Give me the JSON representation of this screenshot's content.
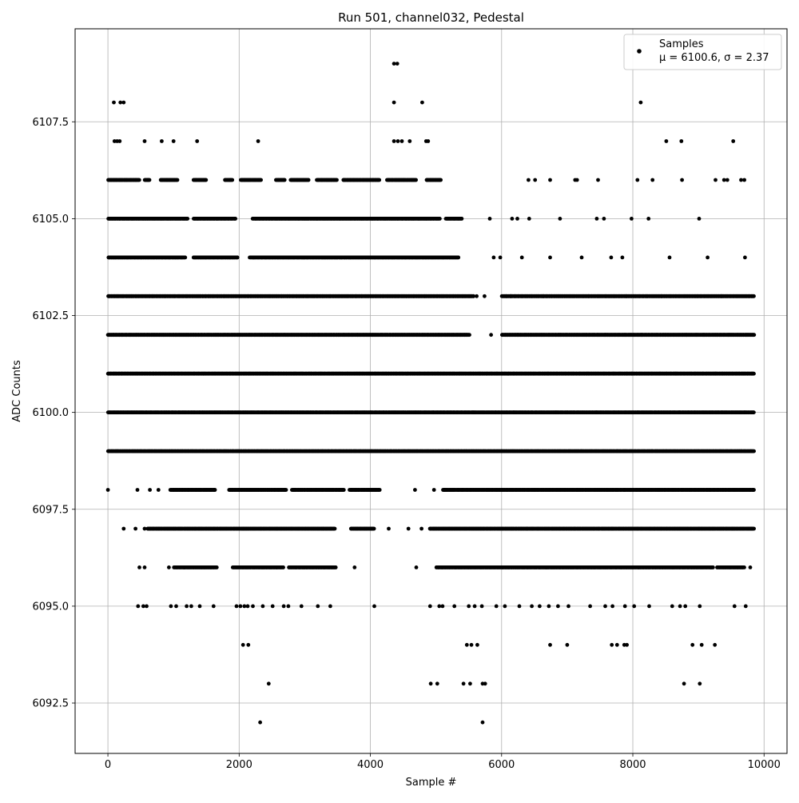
{
  "chart_data": {
    "type": "scatter",
    "title": "Run 501, channel032, Pedestal",
    "xlabel": "Sample #",
    "ylabel": "ADC Counts",
    "xlim": [
      -500,
      10350
    ],
    "ylim": [
      6091.2,
      6109.9
    ],
    "xticks": [
      0,
      2000,
      4000,
      6000,
      8000,
      10000
    ],
    "xtick_labels": [
      "0",
      "2000",
      "4000",
      "6000",
      "8000",
      "10000"
    ],
    "yticks": [
      6092.5,
      6095.0,
      6097.5,
      6100.0,
      6102.5,
      6105.0,
      6107.5
    ],
    "ytick_labels": [
      "6092.5",
      "6095.0",
      "6097.5",
      "6100.0",
      "6102.5",
      "6105.0",
      "6107.5"
    ],
    "grid": true,
    "legend_position": "top-right",
    "marker_color": "#000000",
    "series": [
      {
        "name": "Samples",
        "stats_label": "μ = 6100.6, σ = 2.37",
        "points": [
          [
            4360,
            6109
          ],
          [
            4410,
            6109
          ],
          [
            90,
            6108
          ],
          [
            190,
            6108
          ],
          [
            240,
            6108
          ],
          [
            4360,
            6108
          ],
          [
            4790,
            6108
          ],
          [
            8120,
            6108
          ],
          [
            100,
            6107
          ],
          [
            140,
            6107
          ],
          [
            180,
            6107
          ],
          [
            560,
            6107
          ],
          [
            820,
            6107
          ],
          [
            1000,
            6107
          ],
          [
            1360,
            6107
          ],
          [
            2290,
            6107
          ],
          [
            4360,
            6107
          ],
          [
            4420,
            6107
          ],
          [
            4480,
            6107
          ],
          [
            4600,
            6107
          ],
          [
            4850,
            6107
          ],
          [
            4880,
            6107
          ],
          [
            8510,
            6107
          ],
          [
            8740,
            6107
          ],
          [
            9530,
            6107
          ],
          [
            6410,
            6106
          ],
          [
            6510,
            6106
          ],
          [
            6740,
            6106
          ],
          [
            7120,
            6106
          ],
          [
            7150,
            6106
          ],
          [
            7470,
            6106
          ],
          [
            8070,
            6106
          ],
          [
            8300,
            6106
          ],
          [
            8750,
            6106
          ],
          [
            9260,
            6106
          ],
          [
            9390,
            6106
          ],
          [
            9440,
            6106
          ],
          [
            9650,
            6106
          ],
          [
            9700,
            6106
          ],
          [
            6160,
            6105
          ],
          [
            6240,
            6105
          ],
          [
            6420,
            6105
          ],
          [
            5820,
            6105
          ],
          [
            6890,
            6105
          ],
          [
            7450,
            6105
          ],
          [
            7560,
            6105
          ],
          [
            7980,
            6105
          ],
          [
            8240,
            6105
          ],
          [
            9010,
            6105
          ],
          [
            5880,
            6104
          ],
          [
            5980,
            6104
          ],
          [
            6310,
            6104
          ],
          [
            6740,
            6104
          ],
          [
            7220,
            6104
          ],
          [
            7670,
            6104
          ],
          [
            7840,
            6104
          ],
          [
            8560,
            6104
          ],
          [
            9140,
            6104
          ],
          [
            9710,
            6104
          ],
          [
            5620,
            6103
          ],
          [
            5740,
            6103
          ],
          [
            6140,
            6103
          ],
          [
            6640,
            6103
          ],
          [
            7320,
            6103
          ],
          [
            7900,
            6103
          ],
          [
            8430,
            6103
          ],
          [
            9350,
            6103
          ],
          [
            5510,
            6102
          ],
          [
            5840,
            6102
          ],
          [
            6250,
            6102
          ],
          [
            6890,
            6102
          ],
          [
            7580,
            6102
          ],
          [
            8140,
            6102
          ],
          [
            8820,
            6102
          ],
          [
            9470,
            6102
          ],
          [
            5660,
            6101
          ],
          [
            6110,
            6101
          ],
          [
            6700,
            6101
          ],
          [
            7300,
            6101
          ],
          [
            7980,
            6101
          ],
          [
            8660,
            6101
          ],
          [
            9260,
            6101
          ],
          [
            5570,
            6100
          ],
          [
            6190,
            6100
          ],
          [
            6830,
            6100
          ],
          [
            7450,
            6100
          ],
          [
            8070,
            6100
          ],
          [
            8710,
            6100
          ],
          [
            9370,
            6100
          ],
          [
            5460,
            6099
          ],
          [
            5990,
            6099
          ],
          [
            6550,
            6099
          ],
          [
            7210,
            6099
          ],
          [
            7760,
            6099
          ],
          [
            8290,
            6099
          ],
          [
            8990,
            6099
          ],
          [
            9620,
            6099
          ],
          [
            0,
            6098
          ],
          [
            450,
            6098
          ],
          [
            640,
            6098
          ],
          [
            770,
            6098
          ],
          [
            4680,
            6098
          ],
          [
            4970,
            6098
          ],
          [
            5130,
            6098
          ],
          [
            6500,
            6098
          ],
          [
            7160,
            6098
          ],
          [
            8400,
            6098
          ],
          [
            9180,
            6098
          ],
          [
            240,
            6097
          ],
          [
            420,
            6097
          ],
          [
            560,
            6097
          ],
          [
            4280,
            6097
          ],
          [
            4580,
            6097
          ],
          [
            4780,
            6097
          ],
          [
            5210,
            6097
          ],
          [
            6390,
            6097
          ],
          [
            7110,
            6097
          ],
          [
            7680,
            6097
          ],
          [
            8330,
            6097
          ],
          [
            9010,
            6097
          ],
          [
            480,
            6096
          ],
          [
            560,
            6096
          ],
          [
            930,
            6096
          ],
          [
            1170,
            6096
          ],
          [
            3760,
            6096
          ],
          [
            4700,
            6096
          ],
          [
            5100,
            6096
          ],
          [
            6020,
            6096
          ],
          [
            6680,
            6096
          ],
          [
            7400,
            6096
          ],
          [
            8090,
            6096
          ],
          [
            8620,
            6096
          ],
          [
            9200,
            6096
          ],
          [
            9790,
            6096
          ],
          [
            460,
            6095
          ],
          [
            540,
            6095
          ],
          [
            590,
            6095
          ],
          [
            960,
            6095
          ],
          [
            1040,
            6095
          ],
          [
            1200,
            6095
          ],
          [
            1270,
            6095
          ],
          [
            1400,
            6095
          ],
          [
            1610,
            6095
          ],
          [
            1960,
            6095
          ],
          [
            2020,
            6095
          ],
          [
            2080,
            6095
          ],
          [
            2130,
            6095
          ],
          [
            2210,
            6095
          ],
          [
            2360,
            6095
          ],
          [
            2510,
            6095
          ],
          [
            2680,
            6095
          ],
          [
            2750,
            6095
          ],
          [
            2950,
            6095
          ],
          [
            3200,
            6095
          ],
          [
            3390,
            6095
          ],
          [
            4060,
            6095
          ],
          [
            4910,
            6095
          ],
          [
            5050,
            6095
          ],
          [
            5100,
            6095
          ],
          [
            5280,
            6095
          ],
          [
            5500,
            6095
          ],
          [
            5590,
            6095
          ],
          [
            5700,
            6095
          ],
          [
            5920,
            6095
          ],
          [
            6050,
            6095
          ],
          [
            6270,
            6095
          ],
          [
            6460,
            6095
          ],
          [
            6580,
            6095
          ],
          [
            6720,
            6095
          ],
          [
            6860,
            6095
          ],
          [
            7020,
            6095
          ],
          [
            7350,
            6095
          ],
          [
            7580,
            6095
          ],
          [
            7690,
            6095
          ],
          [
            7880,
            6095
          ],
          [
            8020,
            6095
          ],
          [
            8250,
            6095
          ],
          [
            8600,
            6095
          ],
          [
            8720,
            6095
          ],
          [
            8800,
            6095
          ],
          [
            9020,
            6095
          ],
          [
            9550,
            6095
          ],
          [
            9720,
            6095
          ],
          [
            2060,
            6094
          ],
          [
            2140,
            6094
          ],
          [
            5470,
            6094
          ],
          [
            5540,
            6094
          ],
          [
            5630,
            6094
          ],
          [
            6740,
            6094
          ],
          [
            7000,
            6094
          ],
          [
            7680,
            6094
          ],
          [
            7760,
            6094
          ],
          [
            7870,
            6094
          ],
          [
            7910,
            6094
          ],
          [
            8910,
            6094
          ],
          [
            9050,
            6094
          ],
          [
            9250,
            6094
          ],
          [
            2450,
            6093
          ],
          [
            4920,
            6093
          ],
          [
            5020,
            6093
          ],
          [
            5420,
            6093
          ],
          [
            5520,
            6093
          ],
          [
            5710,
            6093
          ],
          [
            5750,
            6093
          ],
          [
            8780,
            6093
          ],
          [
            9020,
            6093
          ],
          [
            2320,
            6092
          ],
          [
            5710,
            6092
          ]
        ],
        "bands": [
          {
            "y": 6106,
            "ranges": [
              [
                0,
                480
              ],
              [
                560,
                640
              ],
              [
                800,
                1060
              ],
              [
                1300,
                1500
              ],
              [
                1780,
                1900
              ],
              [
                2020,
                2340
              ],
              [
                2560,
                2700
              ],
              [
                2780,
                3060
              ],
              [
                3180,
                3490
              ],
              [
                3580,
                4140
              ],
              [
                4250,
                4700
              ],
              [
                4850,
                5080
              ]
            ]
          },
          {
            "y": 6105,
            "ranges": [
              [
                0,
                1220
              ],
              [
                1300,
                1950
              ],
              [
                2200,
                5060
              ],
              [
                5150,
                5400
              ]
            ]
          },
          {
            "y": 6104,
            "ranges": [
              [
                0,
                1180
              ],
              [
                1300,
                1980
              ],
              [
                2160,
                5350
              ]
            ]
          },
          {
            "y": 6103,
            "ranges": [
              [
                0,
                5580
              ],
              [
                6000,
                9850
              ]
            ]
          },
          {
            "y": 6102,
            "ranges": [
              [
                0,
                5500
              ],
              [
                6000,
                9850
              ]
            ]
          },
          {
            "y": 6101,
            "ranges": [
              [
                0,
                9850
              ]
            ]
          },
          {
            "y": 6100,
            "ranges": [
              [
                0,
                9850
              ]
            ]
          },
          {
            "y": 6099,
            "ranges": [
              [
                0,
                9850
              ]
            ]
          },
          {
            "y": 6098,
            "ranges": [
              [
                950,
                1640
              ],
              [
                1840,
                2720
              ],
              [
                2800,
                3600
              ],
              [
                3680,
                4150
              ],
              [
                5100,
                9850
              ]
            ]
          },
          {
            "y": 6097,
            "ranges": [
              [
                600,
                3460
              ],
              [
                3700,
                4060
              ],
              [
                4900,
                9850
              ]
            ]
          },
          {
            "y": 6096,
            "ranges": [
              [
                1000,
                1660
              ],
              [
                1900,
                2680
              ],
              [
                2750,
                3480
              ],
              [
                5000,
                9230
              ],
              [
                9280,
                9700
              ]
            ]
          }
        ]
      }
    ]
  }
}
